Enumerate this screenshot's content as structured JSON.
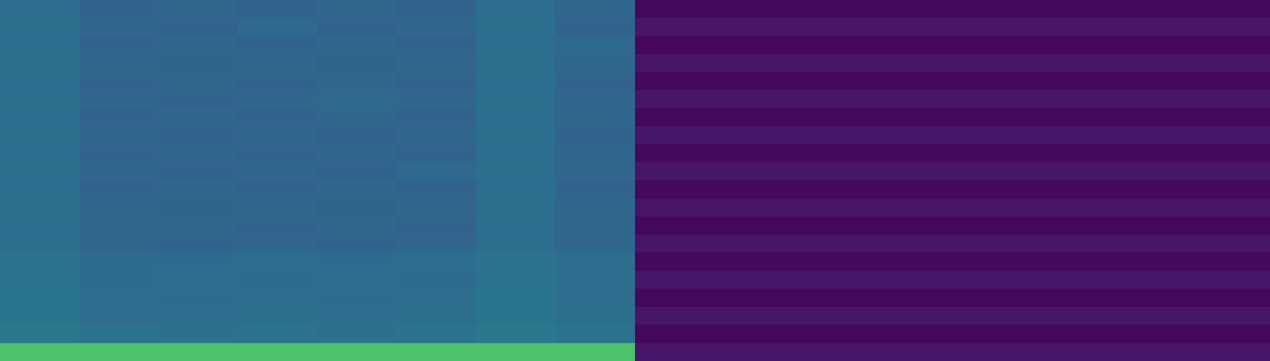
{
  "chart_data": {
    "type": "heatmap",
    "tick_labels": false,
    "grid": false,
    "cells": [
      [
        0.36,
        0.32,
        0.33,
        0.32,
        0.33,
        0.32,
        0.36,
        0.33,
        0.02,
        0.02,
        0.02,
        0.02,
        0.02,
        0.02,
        0.02,
        0.02
      ],
      [
        0.37,
        0.33,
        0.32,
        0.34,
        0.32,
        0.33,
        0.37,
        0.32,
        0.06,
        0.06,
        0.06,
        0.06,
        0.06,
        0.06,
        0.06,
        0.06
      ],
      [
        0.36,
        0.32,
        0.33,
        0.32,
        0.33,
        0.32,
        0.36,
        0.34,
        0.02,
        0.02,
        0.02,
        0.02,
        0.02,
        0.02,
        0.02,
        0.02
      ],
      [
        0.37,
        0.33,
        0.32,
        0.33,
        0.32,
        0.33,
        0.37,
        0.33,
        0.06,
        0.06,
        0.06,
        0.06,
        0.06,
        0.06,
        0.06,
        0.06
      ],
      [
        0.36,
        0.32,
        0.33,
        0.32,
        0.33,
        0.32,
        0.36,
        0.32,
        0.02,
        0.02,
        0.02,
        0.02,
        0.02,
        0.02,
        0.02,
        0.02
      ],
      [
        0.37,
        0.33,
        0.32,
        0.33,
        0.34,
        0.33,
        0.37,
        0.33,
        0.06,
        0.06,
        0.06,
        0.06,
        0.06,
        0.06,
        0.06,
        0.06
      ],
      [
        0.36,
        0.32,
        0.33,
        0.32,
        0.33,
        0.32,
        0.36,
        0.33,
        0.02,
        0.02,
        0.02,
        0.02,
        0.02,
        0.02,
        0.02,
        0.02
      ],
      [
        0.37,
        0.33,
        0.32,
        0.33,
        0.32,
        0.33,
        0.37,
        0.32,
        0.06,
        0.06,
        0.06,
        0.06,
        0.06,
        0.06,
        0.06,
        0.06
      ],
      [
        0.36,
        0.32,
        0.33,
        0.32,
        0.33,
        0.32,
        0.36,
        0.33,
        0.02,
        0.02,
        0.02,
        0.02,
        0.02,
        0.02,
        0.02,
        0.02
      ],
      [
        0.37,
        0.33,
        0.32,
        0.33,
        0.32,
        0.34,
        0.37,
        0.33,
        0.06,
        0.06,
        0.06,
        0.06,
        0.06,
        0.06,
        0.06,
        0.06
      ],
      [
        0.36,
        0.32,
        0.33,
        0.32,
        0.33,
        0.32,
        0.36,
        0.32,
        0.02,
        0.02,
        0.02,
        0.02,
        0.02,
        0.02,
        0.02,
        0.02
      ],
      [
        0.37,
        0.33,
        0.32,
        0.33,
        0.32,
        0.33,
        0.37,
        0.33,
        0.06,
        0.06,
        0.06,
        0.06,
        0.06,
        0.06,
        0.06,
        0.06
      ],
      [
        0.36,
        0.33,
        0.33,
        0.32,
        0.33,
        0.32,
        0.36,
        0.33,
        0.02,
        0.02,
        0.02,
        0.02,
        0.02,
        0.02,
        0.02,
        0.02
      ],
      [
        0.37,
        0.33,
        0.32,
        0.33,
        0.32,
        0.33,
        0.37,
        0.33,
        0.06,
        0.06,
        0.06,
        0.06,
        0.06,
        0.06,
        0.06,
        0.06
      ],
      [
        0.38,
        0.35,
        0.35,
        0.36,
        0.35,
        0.36,
        0.38,
        0.36,
        0.02,
        0.02,
        0.02,
        0.02,
        0.02,
        0.02,
        0.02,
        0.02
      ],
      [
        0.38,
        0.35,
        0.36,
        0.35,
        0.36,
        0.35,
        0.38,
        0.36,
        0.06,
        0.06,
        0.06,
        0.06,
        0.06,
        0.06,
        0.06,
        0.06
      ],
      [
        0.39,
        0.36,
        0.35,
        0.36,
        0.35,
        0.36,
        0.39,
        0.36,
        0.02,
        0.02,
        0.02,
        0.02,
        0.02,
        0.02,
        0.02,
        0.02
      ],
      [
        0.39,
        0.36,
        0.36,
        0.37,
        0.36,
        0.37,
        0.39,
        0.37,
        0.06,
        0.06,
        0.06,
        0.06,
        0.06,
        0.06,
        0.06,
        0.06
      ],
      [
        0.4,
        0.38,
        0.37,
        0.38,
        0.37,
        0.38,
        0.4,
        0.38,
        0.02,
        0.02,
        0.02,
        0.02,
        0.02,
        0.02,
        0.02,
        0.02
      ],
      [
        0.72,
        0.72,
        0.72,
        0.72,
        0.72,
        0.72,
        0.72,
        0.72,
        0.06,
        0.06,
        0.06,
        0.06,
        0.06,
        0.06,
        0.06,
        0.06
      ]
    ]
  }
}
